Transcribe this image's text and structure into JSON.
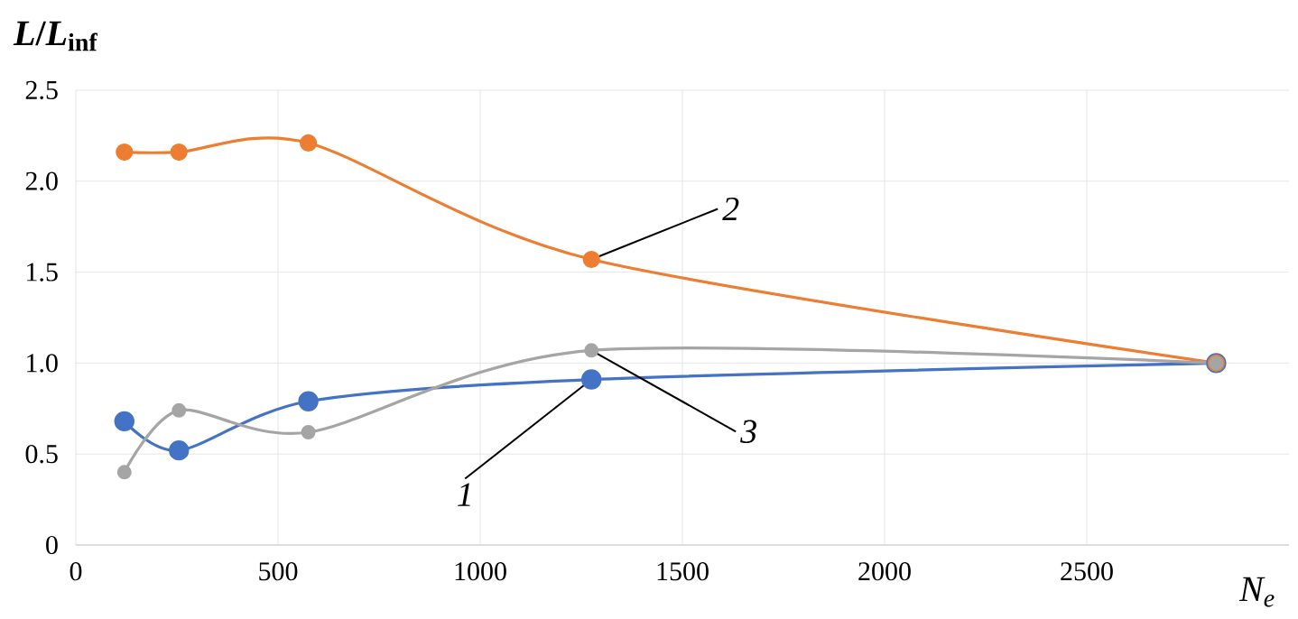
{
  "chart_data": {
    "type": "line",
    "xlabel": "N$_{e}$",
    "ylabel": "*L*/*L*$_{inf}$",
    "x": [
      120,
      255,
      575,
      1275,
      2820
    ],
    "series": [
      {
        "name": "1",
        "color": "#4472c4",
        "values": [
          0.68,
          0.52,
          0.79,
          0.91,
          1.0
        ]
      },
      {
        "name": "2",
        "color": "#ed7d31",
        "values": [
          2.16,
          2.16,
          2.21,
          1.57,
          1.0
        ]
      },
      {
        "name": "3",
        "color": "#a5a5a5",
        "values": [
          0.4,
          0.74,
          0.62,
          1.07,
          1.0
        ]
      }
    ],
    "xlim": [
      0,
      3000
    ],
    "xticks": [
      0,
      500,
      1000,
      1500,
      2000,
      2500
    ],
    "ylim": [
      0,
      2.5
    ],
    "yticks": [
      0,
      0.5,
      {
        "value": 1,
        "label": "1.0"
      },
      1.5,
      {
        "value": 2,
        "label": "2.0"
      },
      2.5
    ],
    "grid": true,
    "marker": "circle",
    "line_style": "solid",
    "legend": false
  }
}
